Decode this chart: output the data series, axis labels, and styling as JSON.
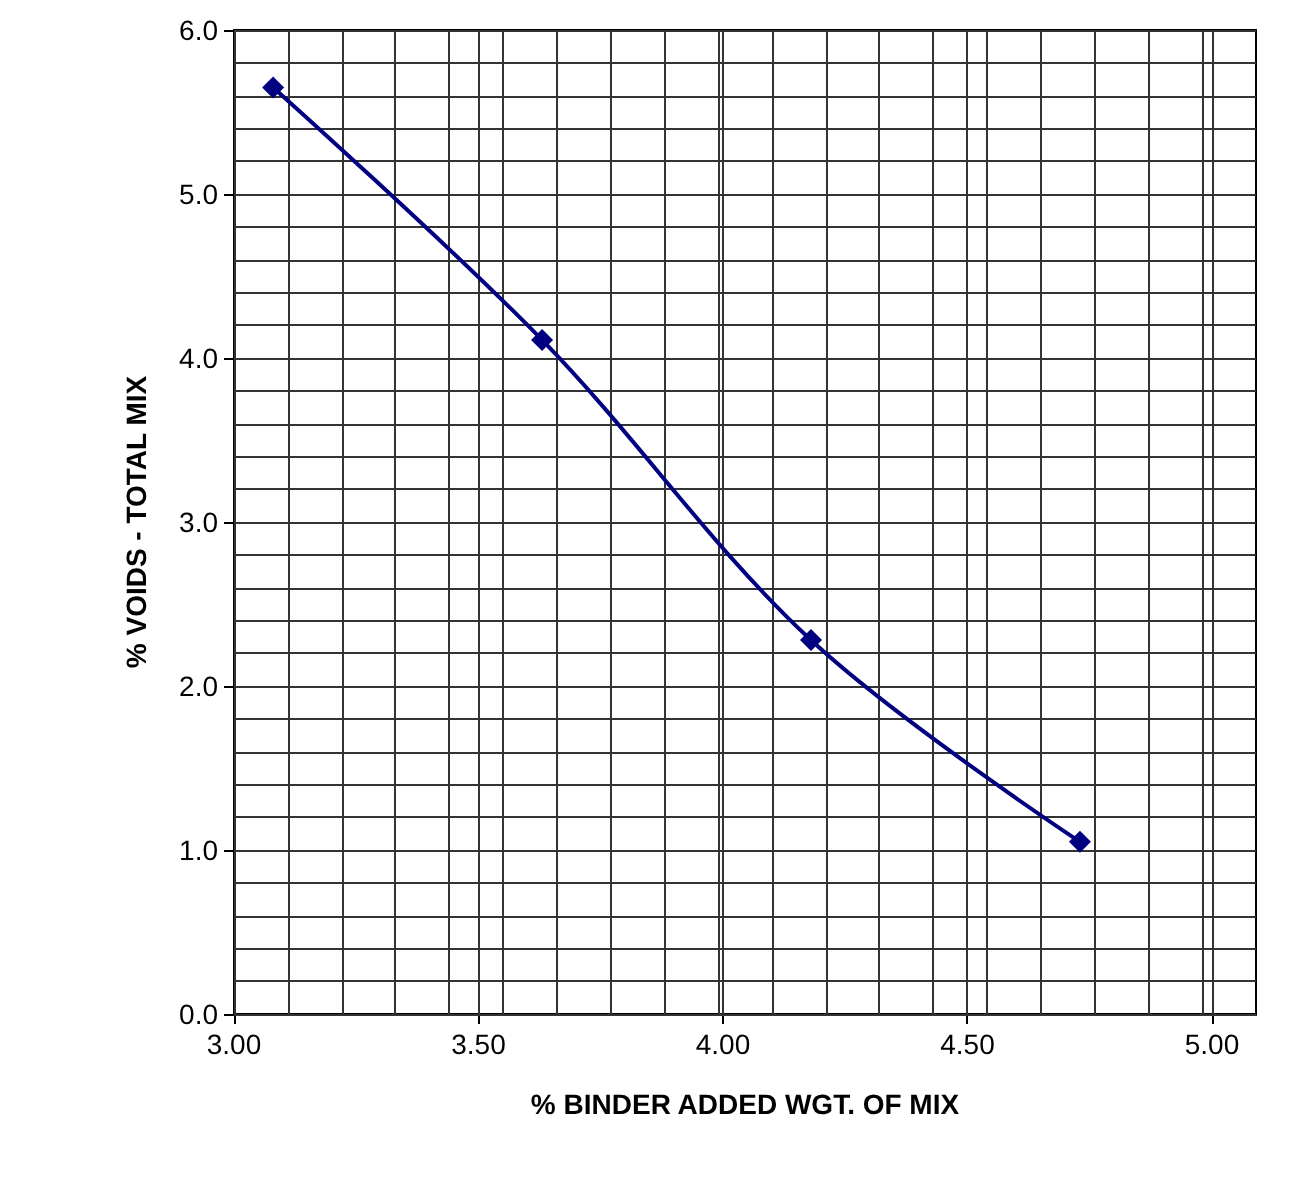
{
  "chart_data": {
    "type": "line",
    "xlabel": "% BINDER ADDED WGT. OF MIX",
    "ylabel": "% VOIDS - TOTAL MIX",
    "x": [
      3.08,
      3.63,
      4.18,
      4.73
    ],
    "series": [
      {
        "color": "#000080",
        "values": [
          5.65,
          4.11,
          2.28,
          1.05
        ]
      }
    ],
    "xlim": [
      3.0,
      5.09
    ],
    "xticks": [
      {
        "value": 3.0,
        "label": "3.00"
      },
      {
        "value": 3.5,
        "label": "3.50"
      },
      {
        "value": 4.0,
        "label": "4.00"
      },
      {
        "value": 4.5,
        "label": "4.50"
      },
      {
        "value": 5.0,
        "label": "5.00"
      },
      {
        "value": 3.11,
        "label": null
      },
      {
        "value": 3.22,
        "label": null
      },
      {
        "value": 3.33,
        "label": null
      },
      {
        "value": 3.44,
        "label": null
      },
      {
        "value": 3.55,
        "label": null
      },
      {
        "value": 3.66,
        "label": null
      },
      {
        "value": 3.77,
        "label": null
      },
      {
        "value": 3.88,
        "label": null
      },
      {
        "value": 3.99,
        "label": null
      },
      {
        "value": 4.1,
        "label": null
      },
      {
        "value": 4.21,
        "label": null
      },
      {
        "value": 4.32,
        "label": null
      },
      {
        "value": 4.43,
        "label": null
      },
      {
        "value": 4.54,
        "label": null
      },
      {
        "value": 4.65,
        "label": null
      },
      {
        "value": 4.76,
        "label": null
      },
      {
        "value": 4.87,
        "label": null
      },
      {
        "value": 4.98,
        "label": null
      }
    ],
    "ylim": [
      0,
      6
    ],
    "yticks": [
      {
        "value": 0,
        "label": "0.0"
      },
      {
        "value": 1,
        "label": "1.0"
      },
      {
        "value": 2,
        "label": "2.0"
      },
      {
        "value": 3,
        "label": "3.0"
      },
      {
        "value": 4,
        "label": "4.0"
      },
      {
        "value": 5,
        "label": "5.0"
      },
      {
        "value": 6,
        "label": "6.0"
      },
      {
        "value": 0.2,
        "label": null
      },
      {
        "value": 0.4,
        "label": null
      },
      {
        "value": 0.6,
        "label": null
      },
      {
        "value": 0.8,
        "label": null
      },
      {
        "value": 1.2,
        "label": null
      },
      {
        "value": 1.4,
        "label": null
      },
      {
        "value": 1.6,
        "label": null
      },
      {
        "value": 1.8,
        "label": null
      },
      {
        "value": 2.2,
        "label": null
      },
      {
        "value": 2.4,
        "label": null
      },
      {
        "value": 2.6,
        "label": null
      },
      {
        "value": 2.8,
        "label": null
      },
      {
        "value": 3.2,
        "label": null
      },
      {
        "value": 3.4,
        "label": null
      },
      {
        "value": 3.6,
        "label": null
      },
      {
        "value": 3.8,
        "label": null
      },
      {
        "value": 4.2,
        "label": null
      },
      {
        "value": 4.4,
        "label": null
      },
      {
        "value": 4.6,
        "label": null
      },
      {
        "value": 4.8,
        "label": null
      },
      {
        "value": 5.2,
        "label": null
      },
      {
        "value": 5.4,
        "label": null
      },
      {
        "value": 5.6,
        "label": null
      },
      {
        "value": 5.8,
        "label": null
      }
    ],
    "grid": true,
    "marker": "diamond",
    "line_style": "solid"
  }
}
